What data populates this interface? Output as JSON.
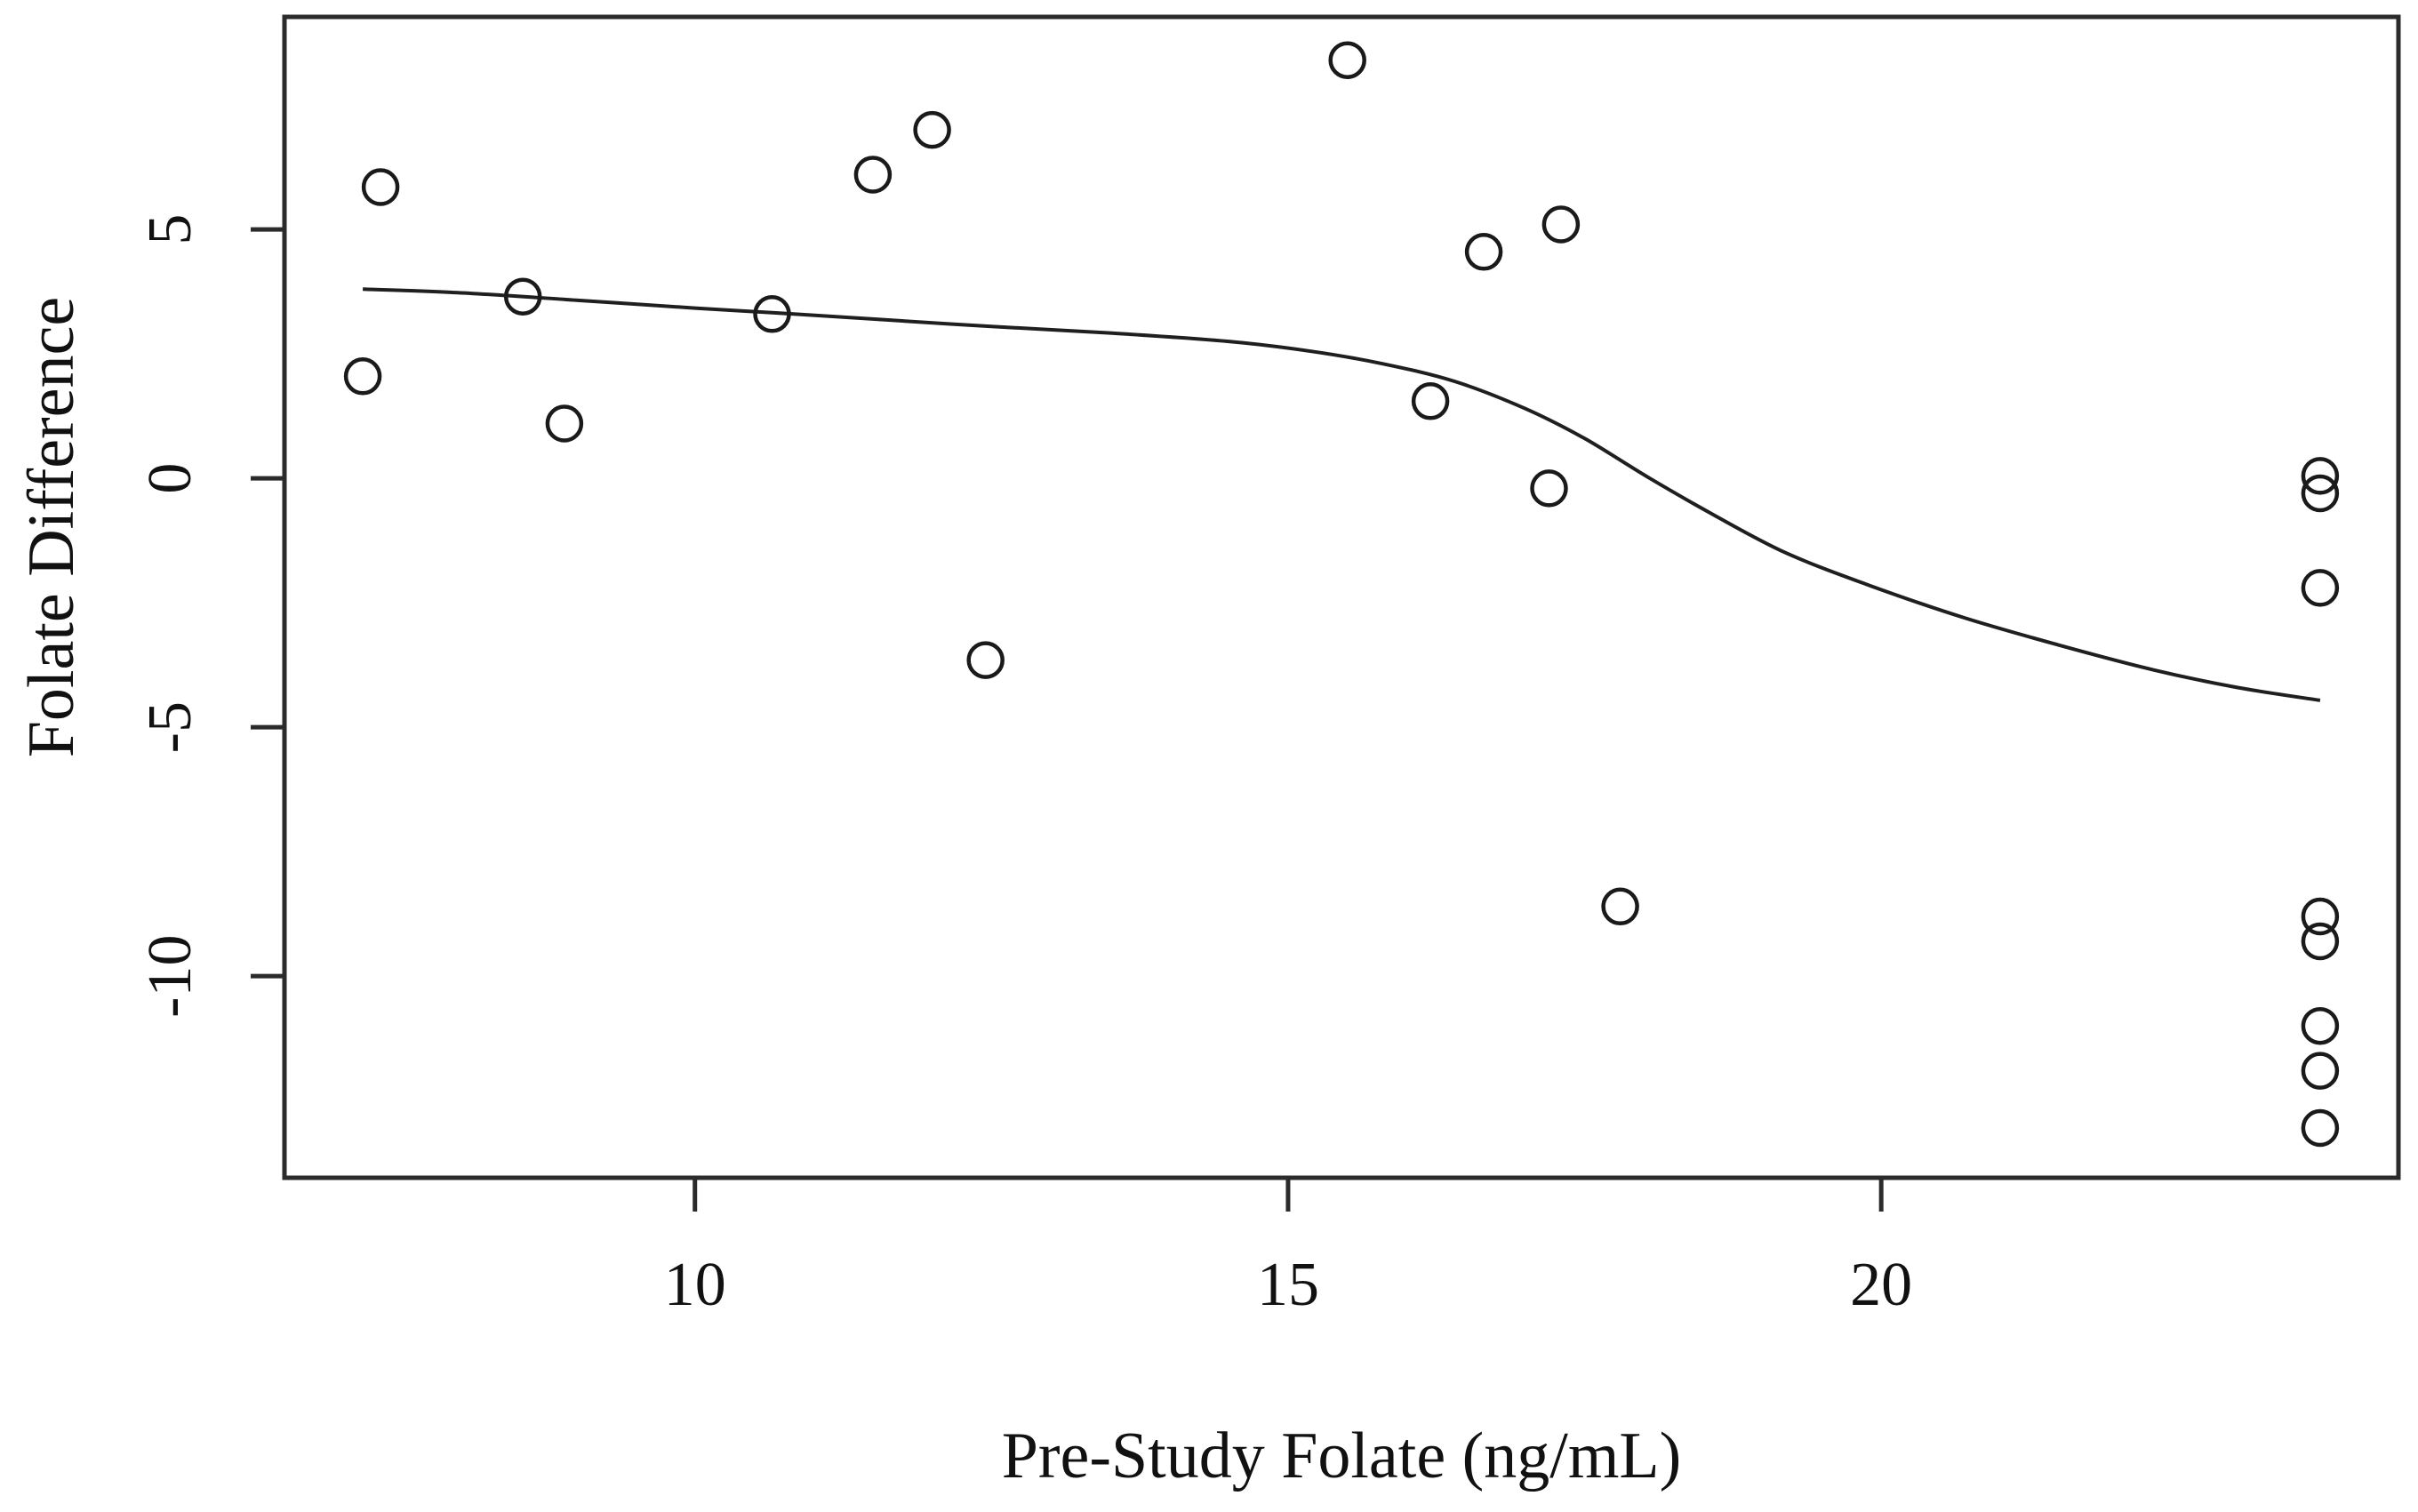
{
  "chart_data": {
    "type": "scatter",
    "title": "",
    "xlabel": "Pre-Study Folate (ng/mL)",
    "ylabel": "Folate Difference",
    "xlim": [
      6.54,
      24.36
    ],
    "ylim": [
      -14.05,
      9.27
    ],
    "x_ticks": [
      10,
      15,
      20
    ],
    "y_ticks": [
      5,
      0,
      -5,
      -10
    ],
    "grid": false,
    "legend": "none",
    "marker": "open-circle",
    "marker_color": "#1a1a1a",
    "curve_color": "#1f1f1f",
    "box_color": "#2b2b2b",
    "points": [
      [
        7.35,
        5.85
      ],
      [
        7.2,
        2.05
      ],
      [
        8.55,
        3.65
      ],
      [
        8.9,
        1.1
      ],
      [
        10.65,
        3.3
      ],
      [
        11.5,
        6.1
      ],
      [
        12.0,
        7.0
      ],
      [
        12.45,
        -3.65
      ],
      [
        15.5,
        8.4
      ],
      [
        16.2,
        1.55
      ],
      [
        16.65,
        4.55
      ],
      [
        17.3,
        5.1
      ],
      [
        17.2,
        -0.2
      ],
      [
        17.8,
        -8.6
      ],
      [
        23.7,
        0.05
      ],
      [
        23.7,
        -0.3
      ],
      [
        23.7,
        -2.2
      ],
      [
        23.7,
        -8.8
      ],
      [
        23.7,
        -9.3
      ],
      [
        23.7,
        -11.0
      ],
      [
        23.7,
        -11.9
      ],
      [
        23.7,
        -13.05
      ]
    ],
    "smoother": {
      "kind": "loess",
      "path": [
        [
          7.2,
          3.8
        ],
        [
          8.0,
          3.73
        ],
        [
          9.0,
          3.58
        ],
        [
          10.0,
          3.42
        ],
        [
          10.65,
          3.33
        ],
        [
          11.5,
          3.2
        ],
        [
          12.5,
          3.05
        ],
        [
          13.5,
          2.92
        ],
        [
          14.5,
          2.75
        ],
        [
          15.2,
          2.55
        ],
        [
          15.8,
          2.3
        ],
        [
          16.4,
          1.95
        ],
        [
          17.0,
          1.4
        ],
        [
          17.5,
          0.8
        ],
        [
          18.05,
          0.0
        ],
        [
          18.6,
          -0.75
        ],
        [
          19.2,
          -1.5
        ],
        [
          19.9,
          -2.15
        ],
        [
          20.7,
          -2.8
        ],
        [
          21.5,
          -3.35
        ],
        [
          22.3,
          -3.85
        ],
        [
          23.0,
          -4.2
        ],
        [
          23.7,
          -4.46
        ]
      ]
    }
  }
}
